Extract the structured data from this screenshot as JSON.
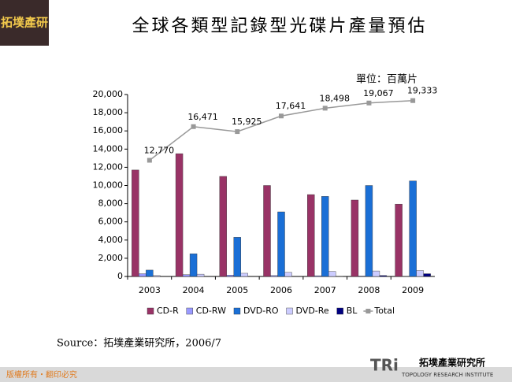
{
  "logo_top": "拓墣產研",
  "chart_data": {
    "type": "bar",
    "title": "全球各類型記錄型光碟片產量預估",
    "unit": "單位：百萬片",
    "categories": [
      "2003",
      "2004",
      "2005",
      "2006",
      "2007",
      "2008",
      "2009"
    ],
    "series": [
      {
        "name": "CD-R",
        "color": "#993366",
        "values": [
          11700,
          13500,
          11000,
          10000,
          9000,
          8400,
          7950
        ]
      },
      {
        "name": "CD-RW",
        "color": "#9999ff",
        "values": [
          300,
          200,
          150,
          100,
          80,
          50,
          30
        ]
      },
      {
        "name": "DVD-RO",
        "color": "#1a6fd6",
        "values": [
          700,
          2500,
          4300,
          7100,
          8800,
          10000,
          10500
        ]
      },
      {
        "name": "DVD-Re",
        "color": "#ccccff",
        "values": [
          100,
          250,
          350,
          450,
          550,
          600,
          650
        ]
      },
      {
        "name": "BL",
        "color": "#000080",
        "values": [
          0,
          0,
          0,
          0,
          30,
          100,
          300
        ]
      },
      {
        "name": "Total",
        "type": "line",
        "color": "#999999",
        "values": [
          12770,
          16471,
          15925,
          17641,
          18498,
          19067,
          19333
        ],
        "value_labels": [
          "12,770",
          "16,471",
          "15,925",
          "17,641",
          "18,498",
          "19,067",
          "19,333"
        ]
      }
    ],
    "ylim": [
      0,
      20000
    ],
    "yticks": [
      {
        "value": 0,
        "label": "0"
      },
      {
        "value": 2000,
        "label": "2,000"
      },
      {
        "value": 4000,
        "label": "4,000"
      },
      {
        "value": 6000,
        "label": "6,000"
      },
      {
        "value": 8000,
        "label": "8,000"
      },
      {
        "value": 10000,
        "label": "10,000"
      },
      {
        "value": 12000,
        "label": "12,000"
      },
      {
        "value": 14000,
        "label": "14,000"
      },
      {
        "value": 16000,
        "label": "16,000"
      },
      {
        "value": 18000,
        "label": "18,000"
      },
      {
        "value": 20000,
        "label": "20,000"
      }
    ],
    "grid": false
  },
  "source": "Source：拓墣產業研究所，2006/7",
  "footer": "版權所有・翻印必究",
  "logo_bottom": {
    "mark": "TRi",
    "name": "拓墣產業研究所",
    "english": "TOPOLOGY RESEARCH INSTITUTE"
  }
}
